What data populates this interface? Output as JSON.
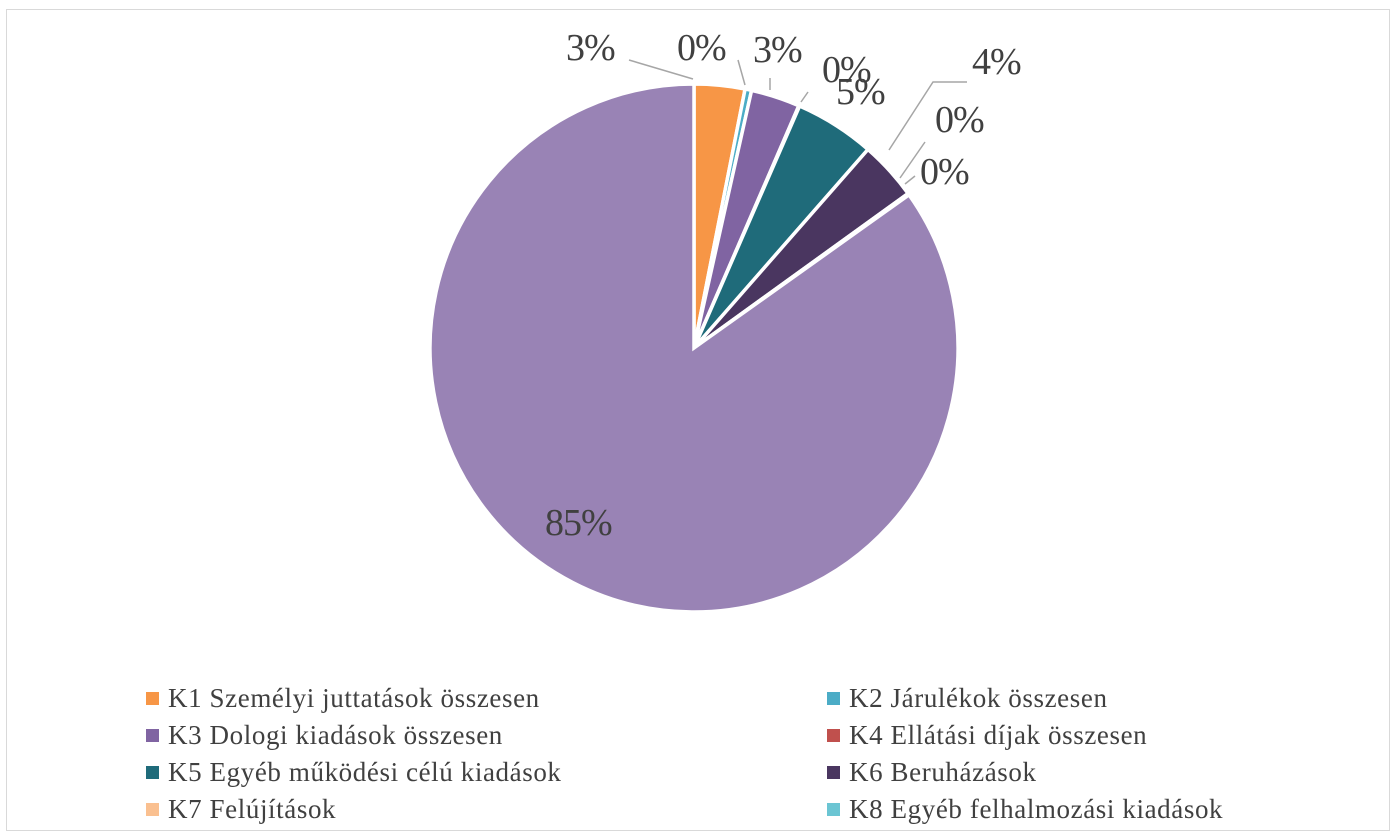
{
  "chart_data": {
    "type": "pie",
    "start_angle_deg": 0,
    "direction": "clockwise",
    "title": "",
    "slices": [
      {
        "name": "K1 Személyi juttatások összesen",
        "value": 3.1,
        "label": "3%",
        "color": "#F79646"
      },
      {
        "name": "K2 Járulékok összesen",
        "value": 0.4,
        "label": "0%",
        "color": "#4BACC6"
      },
      {
        "name": "K3 Dologi kiadások összesen",
        "value": 3.0,
        "label": "3%",
        "color": "#8064A2"
      },
      {
        "name": "K4 Ellátási díjak összesen",
        "value": 0.05,
        "label": "0%",
        "color": "#C0504D"
      },
      {
        "name": "K5 Egyéb működési célú kiadások",
        "value": 4.9,
        "label": "5%",
        "color": "#1F6B7A"
      },
      {
        "name": "K6 Beruházások",
        "value": 3.6,
        "label": "4%",
        "color": "#4A3660"
      },
      {
        "name": "K7 Felújítások",
        "value": 0.05,
        "label": "0%",
        "color": "#FAC090"
      },
      {
        "name": "K8 Egyéb felhalmozási kiadások",
        "value": 0.05,
        "label": "0%",
        "color": "#6BC5D3"
      },
      {
        "name": "",
        "value": 84.85,
        "label": "85%",
        "color": "#9983B5"
      }
    ],
    "legend": {
      "placement": "bottom",
      "columns": 2
    }
  }
}
